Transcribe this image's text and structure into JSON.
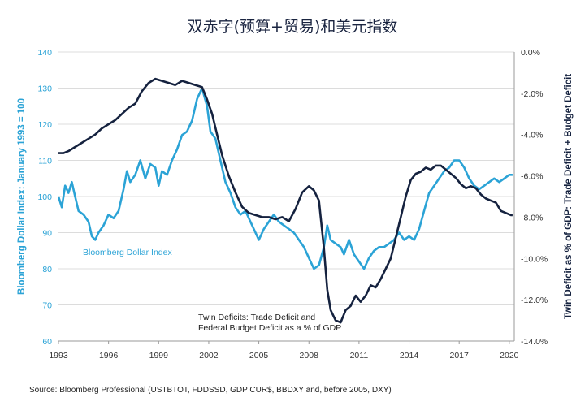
{
  "chart_data": {
    "type": "line",
    "title": "双赤字(预算+贸易)和美元指数",
    "source": "Source: Bloomberg Professional (USTBTOT, FDDSSD, GDP CUR$, BBDXY and, before 2005, DXY)",
    "y_left_label": "Bloomberg Dollar Index: January 1993 = 100",
    "y_right_label": "Twin Deficit as % of GDP: Trade Deficit + Budget Deficit",
    "x_ticks": [
      "1993",
      "1996",
      "1999",
      "2002",
      "2005",
      "2008",
      "2011",
      "2014",
      "2017",
      "2020"
    ],
    "x_range": [
      1993,
      2020.3
    ],
    "y_left_ticks": [
      "60",
      "70",
      "80",
      "90",
      "100",
      "110",
      "120",
      "130",
      "140"
    ],
    "y_left_range": [
      60,
      140
    ],
    "y_right_ticks": [
      "0.0%",
      "-2.0%",
      "-4.0%",
      "-6.0%",
      "-8.0%",
      "-10.0%",
      "-12.0%",
      "-14.0%"
    ],
    "y_right_range": [
      -14,
      0
    ],
    "grid": "horizontal",
    "colors": {
      "dollar": "#2ba3d6",
      "deficit": "#15223f",
      "title": "#1a2440"
    },
    "series": [
      {
        "name": "Bloomberg Dollar Index",
        "axis": "left",
        "x": [
          1993.0,
          1993.2,
          1993.4,
          1993.6,
          1993.8,
          1994.0,
          1994.2,
          1994.5,
          1994.8,
          1995.0,
          1995.2,
          1995.4,
          1995.7,
          1996.0,
          1996.3,
          1996.6,
          1996.9,
          1997.1,
          1997.3,
          1997.6,
          1997.9,
          1998.2,
          1998.5,
          1998.8,
          1999.0,
          1999.2,
          1999.5,
          1999.8,
          2000.1,
          2000.4,
          2000.7,
          2001.0,
          2001.3,
          2001.6,
          2001.9,
          2002.1,
          2002.4,
          2002.7,
          2003.0,
          2003.3,
          2003.6,
          2003.9,
          2004.2,
          2004.5,
          2004.8,
          2005.0,
          2005.3,
          2005.6,
          2005.9,
          2006.2,
          2006.5,
          2006.8,
          2007.1,
          2007.4,
          2007.7,
          2008.0,
          2008.3,
          2008.6,
          2008.9,
          2009.1,
          2009.3,
          2009.6,
          2009.9,
          2010.1,
          2010.4,
          2010.7,
          2011.0,
          2011.3,
          2011.6,
          2011.9,
          2012.2,
          2012.5,
          2012.8,
          2013.1,
          2013.4,
          2013.7,
          2014.0,
          2014.3,
          2014.6,
          2014.9,
          2015.2,
          2015.5,
          2015.8,
          2016.1,
          2016.4,
          2016.7,
          2017.0,
          2017.3,
          2017.6,
          2017.9,
          2018.2,
          2018.5,
          2018.8,
          2019.1,
          2019.4,
          2019.7,
          2020.0,
          2020.2
        ],
        "y": [
          100,
          97,
          103,
          101,
          104,
          100,
          96,
          95,
          93,
          89,
          88,
          90,
          92,
          95,
          94,
          96,
          102,
          107,
          104,
          106,
          110,
          105,
          109,
          108,
          103,
          107,
          106,
          110,
          113,
          117,
          118,
          121,
          127,
          130,
          125,
          118,
          116,
          110,
          104,
          101,
          97,
          95,
          96,
          93,
          90,
          88,
          91,
          93,
          95,
          93,
          92,
          91,
          90,
          88,
          86,
          83,
          80,
          81,
          86,
          92,
          88,
          87,
          86,
          84,
          88,
          84,
          82,
          80,
          83,
          85,
          86,
          86,
          87,
          88,
          90,
          88,
          89,
          88,
          91,
          96,
          101,
          103,
          105,
          107,
          108,
          110,
          110,
          108,
          105,
          103,
          102,
          103,
          104,
          105,
          104,
          105,
          106,
          106
        ]
      },
      {
        "name": "Twin Deficits: Trade Deficit and Federal Budget Deficit as a % of GDP",
        "axis": "right",
        "x": [
          1993.0,
          1993.3,
          1993.6,
          1994.0,
          1994.4,
          1994.8,
          1995.2,
          1995.6,
          1996.0,
          1996.4,
          1996.8,
          1997.2,
          1997.6,
          1998.0,
          1998.4,
          1998.8,
          1999.2,
          1999.6,
          2000.0,
          2000.4,
          2000.8,
          2001.2,
          2001.6,
          2001.9,
          2002.2,
          2002.5,
          2002.8,
          2003.2,
          2003.6,
          2004.0,
          2004.4,
          2004.8,
          2005.2,
          2005.6,
          2006.0,
          2006.4,
          2006.8,
          2007.2,
          2007.6,
          2008.0,
          2008.3,
          2008.6,
          2008.9,
          2009.1,
          2009.3,
          2009.6,
          2009.9,
          2010.2,
          2010.5,
          2010.8,
          2011.1,
          2011.4,
          2011.7,
          2012.0,
          2012.3,
          2012.6,
          2012.9,
          2013.2,
          2013.5,
          2013.8,
          2014.1,
          2014.4,
          2014.7,
          2015.0,
          2015.3,
          2015.6,
          2015.9,
          2016.2,
          2016.5,
          2016.8,
          2017.1,
          2017.4,
          2017.7,
          2018.0,
          2018.3,
          2018.6,
          2018.9,
          2019.2,
          2019.5,
          2019.8,
          2020.1,
          2020.2
        ],
        "y": [
          -4.9,
          -4.9,
          -4.8,
          -4.6,
          -4.4,
          -4.2,
          -4.0,
          -3.7,
          -3.5,
          -3.3,
          -3.0,
          -2.7,
          -2.5,
          -1.9,
          -1.5,
          -1.3,
          -1.4,
          -1.5,
          -1.6,
          -1.4,
          -1.5,
          -1.6,
          -1.7,
          -2.3,
          -3.0,
          -4.0,
          -5.0,
          -6.0,
          -6.8,
          -7.5,
          -7.8,
          -7.9,
          -8.0,
          -8.0,
          -8.1,
          -8.0,
          -8.2,
          -7.6,
          -6.8,
          -6.5,
          -6.7,
          -7.2,
          -9.5,
          -11.5,
          -12.5,
          -13.0,
          -13.1,
          -12.5,
          -12.3,
          -11.8,
          -12.1,
          -11.8,
          -11.3,
          -11.4,
          -11.0,
          -10.5,
          -10.0,
          -9.0,
          -8.0,
          -7.0,
          -6.2,
          -5.9,
          -5.8,
          -5.6,
          -5.7,
          -5.5,
          -5.5,
          -5.7,
          -5.9,
          -6.1,
          -6.4,
          -6.6,
          -6.5,
          -6.6,
          -6.9,
          -7.1,
          -7.2,
          -7.3,
          -7.7,
          -7.8,
          -7.9,
          -7.9
        ]
      }
    ],
    "annotations": {
      "dollar_label": "Bloomberg Dollar Index",
      "deficit_label_line1": "Twin Deficits: Trade Deficit and",
      "deficit_label_line2": "Federal Budget Deficit as a % of GDP"
    }
  }
}
